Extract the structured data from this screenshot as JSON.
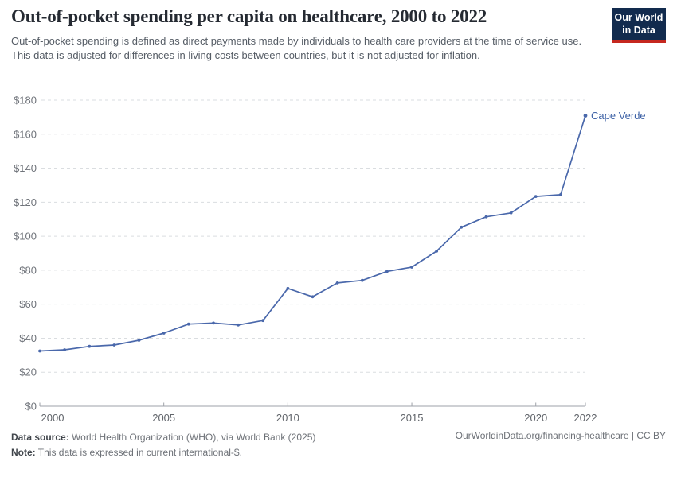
{
  "logo": {
    "line1": "Our World",
    "line2": "in Data",
    "bg_color": "#122b4e",
    "accent_color": "#c5281f"
  },
  "chart_data": {
    "type": "line",
    "title": "Out-of-pocket spending per capita on healthcare, 2000 to 2022",
    "subtitle": "Out-of-pocket spending is defined as direct payments made by individuals to health care providers at the time of service use. This data is adjusted for differences in living costs between countries, but it is not adjusted for inflation.",
    "x": [
      2000,
      2001,
      2002,
      2003,
      2004,
      2005,
      2006,
      2007,
      2008,
      2009,
      2010,
      2011,
      2012,
      2013,
      2014,
      2015,
      2016,
      2017,
      2018,
      2019,
      2020,
      2021,
      2022
    ],
    "series": [
      {
        "name": "Cape Verde",
        "values": [
          32.5,
          33.2,
          35.2,
          36.0,
          38.8,
          43.0,
          48.3,
          48.9,
          47.8,
          50.4,
          69.3,
          64.4,
          72.5,
          74.0,
          79.3,
          81.8,
          91.2,
          105.3,
          111.4,
          113.7,
          123.4,
          124.4,
          170.9
        ]
      }
    ],
    "xticks": [
      2000,
      2005,
      2010,
      2015,
      2020,
      2022
    ],
    "ylim": [
      0,
      180
    ],
    "ytick_step": 20,
    "ytick_prefix": "$",
    "grid": true,
    "legend_position": "end-of-line-label",
    "line_color": "#4a68ab",
    "label_color": "#3e62a6",
    "grid_color": "#dadde0",
    "axis_color": "#9ea2a8",
    "tick_text_color": "#6f737a"
  },
  "footer": {
    "source_label": "Data source:",
    "source_text": " World Health Organization (WHO), via World Bank (2025)",
    "note_label": "Note:",
    "note_text": " This data is expressed in current international-$.",
    "link": "OurWorldinData.org/financing-healthcare | CC BY"
  }
}
